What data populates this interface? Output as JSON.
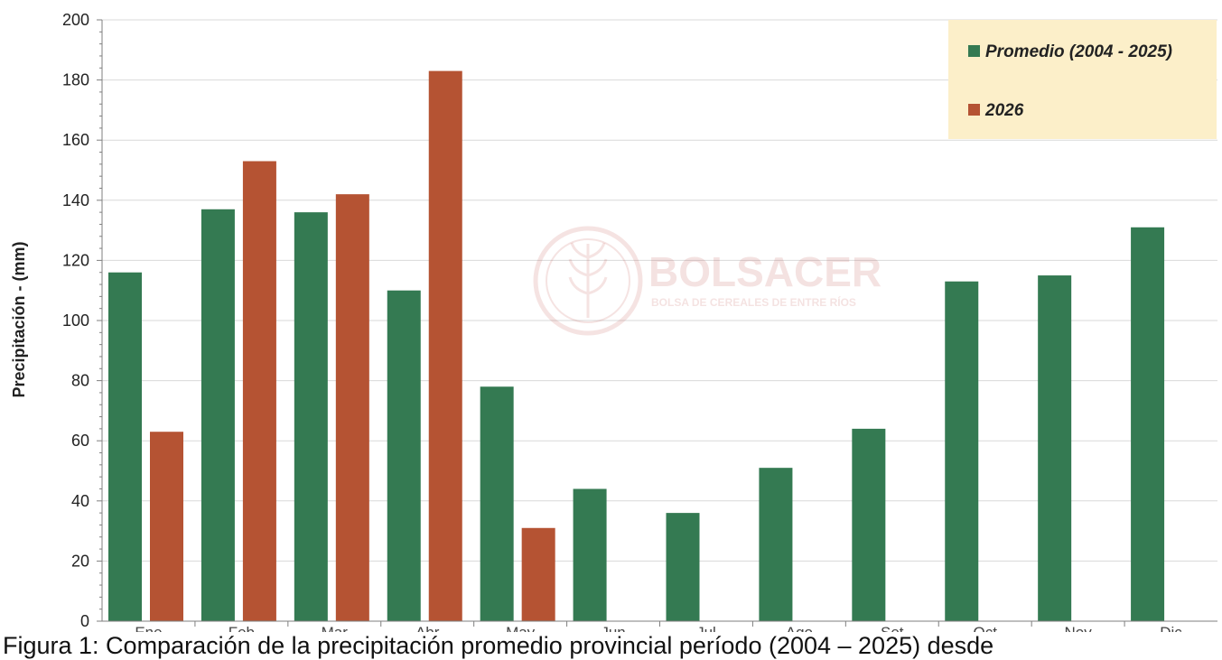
{
  "colors": {
    "promedio": "#347a52",
    "anio": "#b55333",
    "legend_bg": "#fcefc9",
    "grid": "#d9d9d9",
    "axis": "#7f7f7f"
  },
  "watermark": {
    "name": "BOLSACER",
    "subtitle": "BOLSA DE CEREALES DE ENTRE RÍOS"
  },
  "caption": "Figura 1: Comparación de la precipitación promedio provincial período (2004 – 2025) desde",
  "chart_data": {
    "type": "bar",
    "title": "",
    "xlabel": "",
    "ylabel": "Precipitación - (mm)",
    "ylim": [
      0,
      200
    ],
    "yticks": [
      0,
      20,
      40,
      60,
      80,
      100,
      120,
      140,
      160,
      180,
      200
    ],
    "grid": true,
    "legend_position": "top-right",
    "categories": [
      "Ene",
      "Feb",
      "Mar",
      "Abr",
      "May",
      "Jun",
      "Jul",
      "Ago",
      "Set",
      "Oct",
      "Nov",
      "Dic"
    ],
    "series": [
      {
        "name": "Promedio (2004 - 2025)",
        "values": [
          116,
          137,
          136,
          110,
          78,
          44,
          36,
          51,
          64,
          113,
          115,
          131
        ]
      },
      {
        "name": "2026",
        "values": [
          63,
          153,
          142,
          183,
          31,
          null,
          null,
          null,
          null,
          null,
          null,
          null
        ]
      }
    ]
  }
}
